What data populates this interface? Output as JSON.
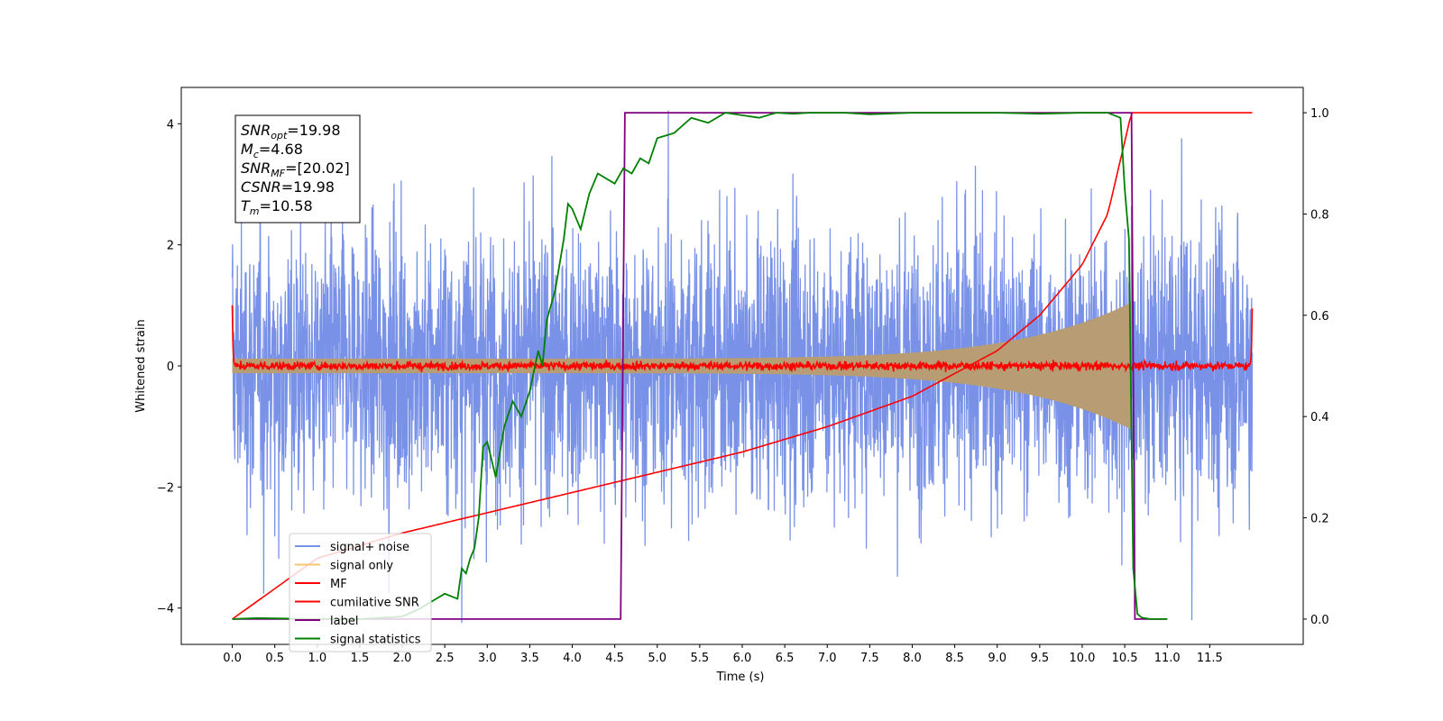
{
  "chart_data": {
    "type": "line",
    "title": "",
    "xlabel": "Time (s)",
    "ylabel": "Whitened strain",
    "xlim": [
      -0.6,
      12.6
    ],
    "ylim": [
      -4.6,
      4.6
    ],
    "y2lim": [
      -0.05,
      1.05
    ],
    "grid": false,
    "legend_position": "lower-left",
    "x_ticks": [
      0.0,
      0.5,
      1.0,
      1.5,
      2.0,
      2.5,
      3.0,
      3.5,
      4.0,
      4.5,
      5.0,
      5.5,
      6.0,
      6.5,
      7.0,
      7.5,
      8.0,
      8.5,
      9.0,
      9.5,
      10.0,
      10.5,
      11.0,
      11.5
    ],
    "x_tick_labels": [
      "0.0",
      "0.5",
      "1.0",
      "1.5",
      "2.0",
      "2.5",
      "3.0",
      "3.5",
      "4.0",
      "4.5",
      "5.0",
      "5.5",
      "6.0",
      "6.5",
      "7.0",
      "7.5",
      "8.0",
      "8.5",
      "9.0",
      "9.5",
      "10.0",
      "10.5",
      "11.0",
      "11.5"
    ],
    "y_ticks": [
      -4,
      -2,
      0,
      2,
      4
    ],
    "y_tick_labels": [
      "−4",
      "−2",
      "0",
      "2",
      "4"
    ],
    "y2_ticks": [
      0.0,
      0.2,
      0.4,
      0.6,
      0.8,
      1.0
    ],
    "y2_tick_labels": [
      "0.0",
      "0.2",
      "0.4",
      "0.6",
      "0.8",
      "1.0"
    ],
    "annotation": [
      {
        "base": "SNR",
        "sub": "opt",
        "value": "=19.98"
      },
      {
        "base": "M",
        "sub": "c",
        "value": "=4.68"
      },
      {
        "base": "SNR",
        "sub": "MF",
        "value": "=[20.02]"
      },
      {
        "base": "CSNR",
        "sub": "",
        "value": "=19.98"
      },
      {
        "base": "T",
        "sub": "m",
        "value": "=10.58"
      }
    ],
    "series": [
      {
        "name": "signal+ noise",
        "color": "#7992e8",
        "axis": "left",
        "description_values": {
          "x_range": [
            0.0,
            12.0
          ],
          "amplitude_approx": 2.0,
          "peak_max": 4.2,
          "peak_min": -4.1
        }
      },
      {
        "name": "signal only",
        "color": "#f8c471",
        "axis": "left",
        "chirp": {
          "t_start": 0.0,
          "t_merge": 10.58,
          "amp_start": 0.12,
          "amp_end": 1.05
        }
      },
      {
        "name": "MF",
        "color": "#ff0000",
        "axis": "left",
        "baseline": 0.0,
        "edge_values": [
          1.0,
          0.95
        ]
      },
      {
        "name": "cumilative SNR",
        "color": "#ff0000",
        "axis": "right",
        "x": [
          0.0,
          1.0,
          2.0,
          3.0,
          4.0,
          5.0,
          6.0,
          7.0,
          8.0,
          9.0,
          9.5,
          10.0,
          10.3,
          10.58,
          12.0
        ],
        "y": [
          0.0,
          0.12,
          0.17,
          0.21,
          0.25,
          0.29,
          0.33,
          0.38,
          0.44,
          0.53,
          0.6,
          0.7,
          0.8,
          1.0,
          1.0
        ]
      },
      {
        "name": "label",
        "color": "#800080",
        "axis": "right",
        "x": [
          0.0,
          4.57,
          4.62,
          10.58,
          10.62,
          11.0
        ],
        "y": [
          0.0,
          0.0,
          1.0,
          1.0,
          0.0,
          0.0
        ]
      },
      {
        "name": "signal statistics",
        "color": "#008000",
        "axis": "right",
        "x": [
          0.0,
          0.3,
          0.6,
          1.0,
          1.5,
          2.0,
          2.2,
          2.4,
          2.5,
          2.65,
          2.7,
          2.75,
          2.8,
          2.85,
          2.9,
          2.95,
          3.0,
          3.1,
          3.2,
          3.3,
          3.4,
          3.5,
          3.6,
          3.65,
          3.7,
          3.8,
          3.9,
          3.95,
          4.0,
          4.1,
          4.2,
          4.3,
          4.4,
          4.5,
          4.6,
          4.7,
          4.8,
          4.9,
          5.0,
          5.2,
          5.4,
          5.6,
          5.8,
          6.0,
          6.2,
          6.4,
          6.6,
          6.8,
          7.0,
          7.2,
          7.5,
          8.0,
          8.5,
          9.0,
          9.5,
          10.0,
          10.3,
          10.45,
          10.5,
          10.55,
          10.6,
          10.65,
          10.7,
          10.8,
          11.0
        ],
        "y": [
          0.0,
          0.002,
          0.001,
          0.0,
          0.0,
          0.005,
          0.02,
          0.04,
          0.05,
          0.04,
          0.1,
          0.09,
          0.12,
          0.14,
          0.2,
          0.34,
          0.35,
          0.28,
          0.38,
          0.43,
          0.4,
          0.45,
          0.53,
          0.5,
          0.59,
          0.65,
          0.75,
          0.82,
          0.81,
          0.77,
          0.84,
          0.88,
          0.87,
          0.86,
          0.89,
          0.88,
          0.91,
          0.9,
          0.95,
          0.96,
          0.99,
          0.98,
          1.0,
          0.995,
          0.99,
          1.0,
          0.998,
          1.0,
          1.0,
          1.0,
          0.997,
          1.0,
          1.0,
          1.0,
          0.998,
          1.0,
          1.0,
          0.99,
          0.85,
          0.75,
          0.1,
          0.01,
          0.003,
          0.0,
          0.0
        ]
      }
    ]
  }
}
